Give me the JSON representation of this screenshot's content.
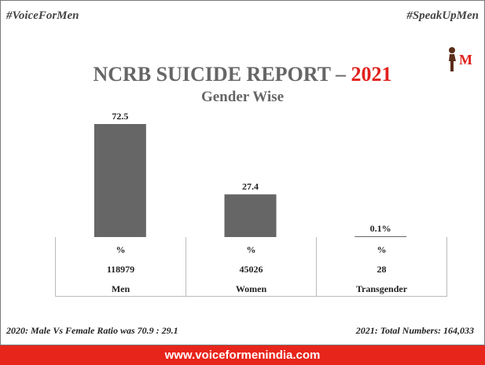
{
  "tags": {
    "left": "#VoiceForMen",
    "right": "#SpeakUpMen"
  },
  "logo": {
    "letter": "M"
  },
  "title": {
    "main": "NCRB SUICIDE REPORT – ",
    "year": "2021",
    "sub": "Gender Wise"
  },
  "chart_data": {
    "type": "bar",
    "categories": [
      "Men",
      "Women",
      "Transgender"
    ],
    "values": [
      72.5,
      27.4,
      0.1
    ],
    "data_labels": [
      "72.5",
      "27.4",
      "0.1%"
    ],
    "units": [
      "%",
      "%",
      "%"
    ],
    "counts": [
      "118979",
      "45026",
      "28"
    ],
    "bar_color": "#666666",
    "grid": false
  },
  "footer": {
    "left": "2020: Male Vs Female Ratio was 70.9 : 29.1",
    "right": "2021: Total Numbers: 164,033",
    "banner": "www.voiceformenindia.com"
  },
  "colors": {
    "accent": "#e8251b",
    "title": "#666666"
  }
}
